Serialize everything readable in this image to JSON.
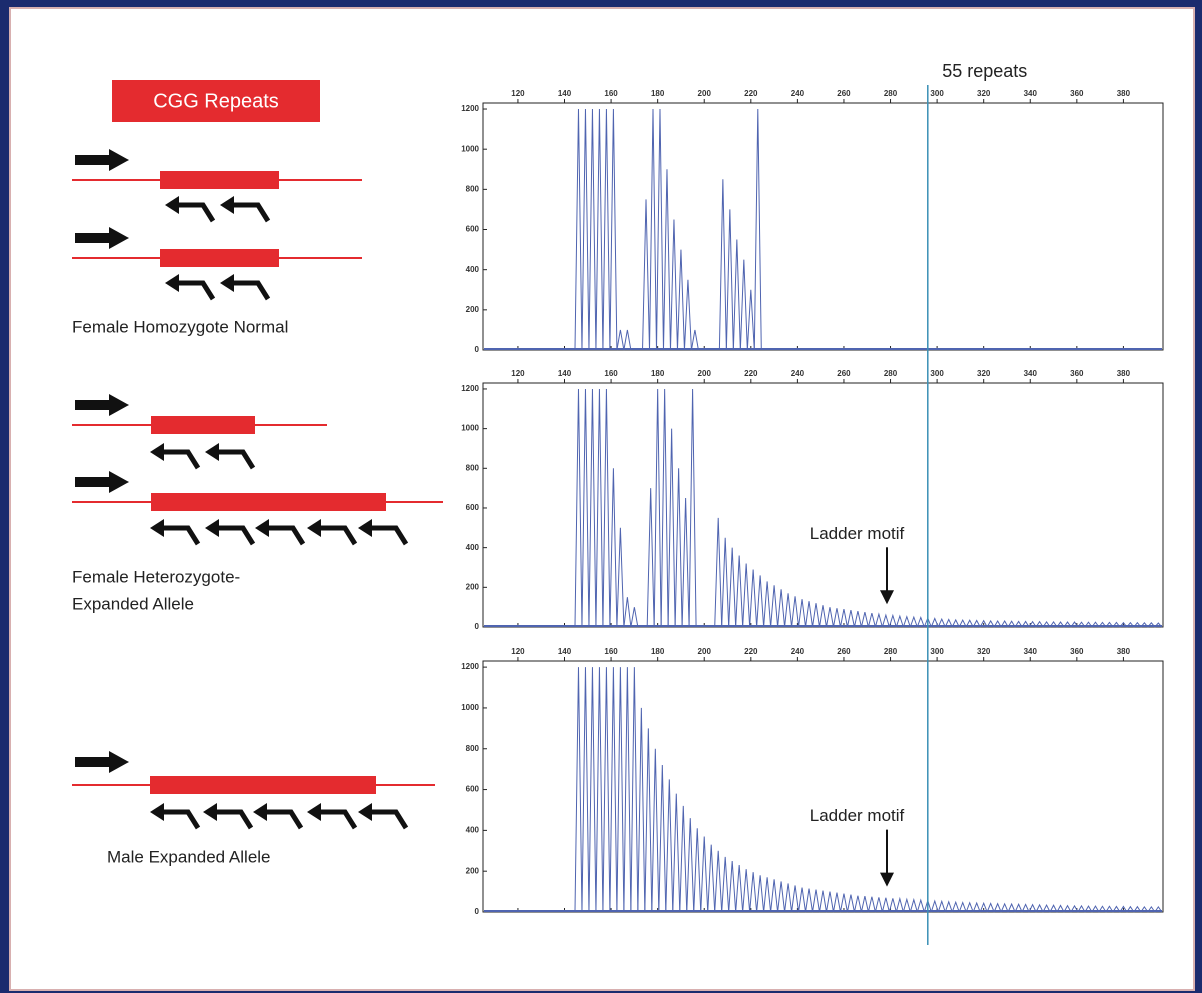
{
  "badge": "CGG Repeats",
  "repeat_marker": {
    "label": "55 repeats",
    "x": 296
  },
  "diagrams": [
    {
      "label": [
        "Female Homozygote Normal"
      ]
    },
    {
      "label": [
        "Female Heterozygote-",
        "Expanded Allele"
      ]
    },
    {
      "label": [
        "Male Expanded Allele"
      ]
    }
  ],
  "chart_data": [
    {
      "type": "peaks",
      "color": "#4f64b0",
      "xlim": [
        105,
        397
      ],
      "ylim": [
        0,
        1230
      ],
      "xticks": [
        120,
        140,
        160,
        180,
        200,
        220,
        240,
        260,
        280,
        300,
        320,
        340,
        360,
        380
      ],
      "yticks": [
        0,
        200,
        400,
        600,
        800,
        1000,
        1200
      ],
      "x": [
        146,
        149,
        152,
        155,
        158,
        161,
        164,
        167,
        175,
        178,
        181,
        184,
        187,
        190,
        193,
        196,
        208,
        211,
        214,
        217,
        220,
        223
      ],
      "values": [
        1200,
        1200,
        1200,
        1200,
        1200,
        1200,
        100,
        100,
        750,
        1200,
        1200,
        900,
        650,
        500,
        350,
        100,
        850,
        700,
        550,
        450,
        300,
        1200
      ]
    },
    {
      "type": "peaks",
      "color": "#4f64b0",
      "xlim": [
        105,
        397
      ],
      "ylim": [
        0,
        1230
      ],
      "xticks": [
        120,
        140,
        160,
        180,
        200,
        220,
        240,
        260,
        280,
        300,
        320,
        340,
        360,
        380
      ],
      "yticks": [
        0,
        200,
        400,
        600,
        800,
        1000,
        1200
      ],
      "annotation": "Ladder motif",
      "x": [
        146,
        149,
        152,
        155,
        158,
        161,
        164,
        167,
        170,
        177,
        180,
        183,
        186,
        189,
        192,
        195,
        206,
        209,
        212,
        215,
        218,
        221,
        224,
        227,
        230,
        233,
        236,
        239,
        242,
        245,
        248,
        251,
        254,
        257,
        260,
        263,
        266,
        269,
        272,
        275,
        278,
        281,
        284,
        287,
        290,
        293,
        296,
        299,
        302,
        305,
        308,
        311,
        314,
        317,
        320,
        323,
        326,
        329,
        332,
        335,
        338,
        341,
        344,
        347,
        350,
        353,
        356,
        359,
        362,
        365,
        368,
        371,
        374,
        377,
        380,
        383,
        386,
        389,
        392,
        395
      ],
      "values": [
        1200,
        1200,
        1200,
        1200,
        1200,
        800,
        500,
        150,
        100,
        700,
        1200,
        1200,
        1000,
        800,
        650,
        1200,
        550,
        450,
        400,
        360,
        320,
        290,
        260,
        230,
        210,
        190,
        170,
        155,
        140,
        130,
        120,
        110,
        100,
        95,
        90,
        85,
        80,
        75,
        70,
        65,
        60,
        58,
        55,
        52,
        50,
        48,
        45,
        43,
        40,
        38,
        36,
        35,
        34,
        33,
        32,
        31,
        30,
        30,
        29,
        28,
        28,
        27,
        27,
        26,
        26,
        25,
        25,
        25,
        24,
        24,
        24,
        23,
        23,
        23,
        22,
        22,
        22,
        21,
        21,
        20
      ]
    },
    {
      "type": "peaks",
      "color": "#4f64b0",
      "xlim": [
        105,
        397
      ],
      "ylim": [
        0,
        1230
      ],
      "xticks": [
        120,
        140,
        160,
        180,
        200,
        220,
        240,
        260,
        280,
        300,
        320,
        340,
        360,
        380
      ],
      "yticks": [
        0,
        200,
        400,
        600,
        800,
        1000,
        1200
      ],
      "annotation": "Ladder motif",
      "x": [
        146,
        149,
        152,
        155,
        158,
        161,
        164,
        167,
        170,
        173,
        176,
        179,
        182,
        185,
        188,
        191,
        194,
        197,
        200,
        203,
        206,
        209,
        212,
        215,
        218,
        221,
        224,
        227,
        230,
        233,
        236,
        239,
        242,
        245,
        248,
        251,
        254,
        257,
        260,
        263,
        266,
        269,
        272,
        275,
        278,
        281,
        284,
        287,
        290,
        293,
        296,
        299,
        302,
        305,
        308,
        311,
        314,
        317,
        320,
        323,
        326,
        329,
        332,
        335,
        338,
        341,
        344,
        347,
        350,
        353,
        356,
        359,
        362,
        365,
        368,
        371,
        374,
        377,
        380,
        383,
        386,
        389,
        392,
        395
      ],
      "values": [
        1200,
        1200,
        1200,
        1200,
        1200,
        1200,
        1200,
        1200,
        1200,
        1000,
        900,
        800,
        720,
        650,
        580,
        520,
        460,
        410,
        370,
        330,
        300,
        270,
        250,
        230,
        210,
        195,
        180,
        170,
        160,
        150,
        140,
        130,
        120,
        115,
        110,
        105,
        100,
        95,
        90,
        85,
        80,
        78,
        75,
        72,
        70,
        67,
        65,
        62,
        60,
        58,
        56,
        54,
        52,
        50,
        48,
        46,
        45,
        44,
        43,
        42,
        41,
        40,
        39,
        38,
        37,
        36,
        35,
        34,
        33,
        32,
        31,
        30,
        30,
        29,
        29,
        28,
        28,
        27,
        27,
        26,
        26,
        25,
        25,
        25
      ]
    }
  ]
}
